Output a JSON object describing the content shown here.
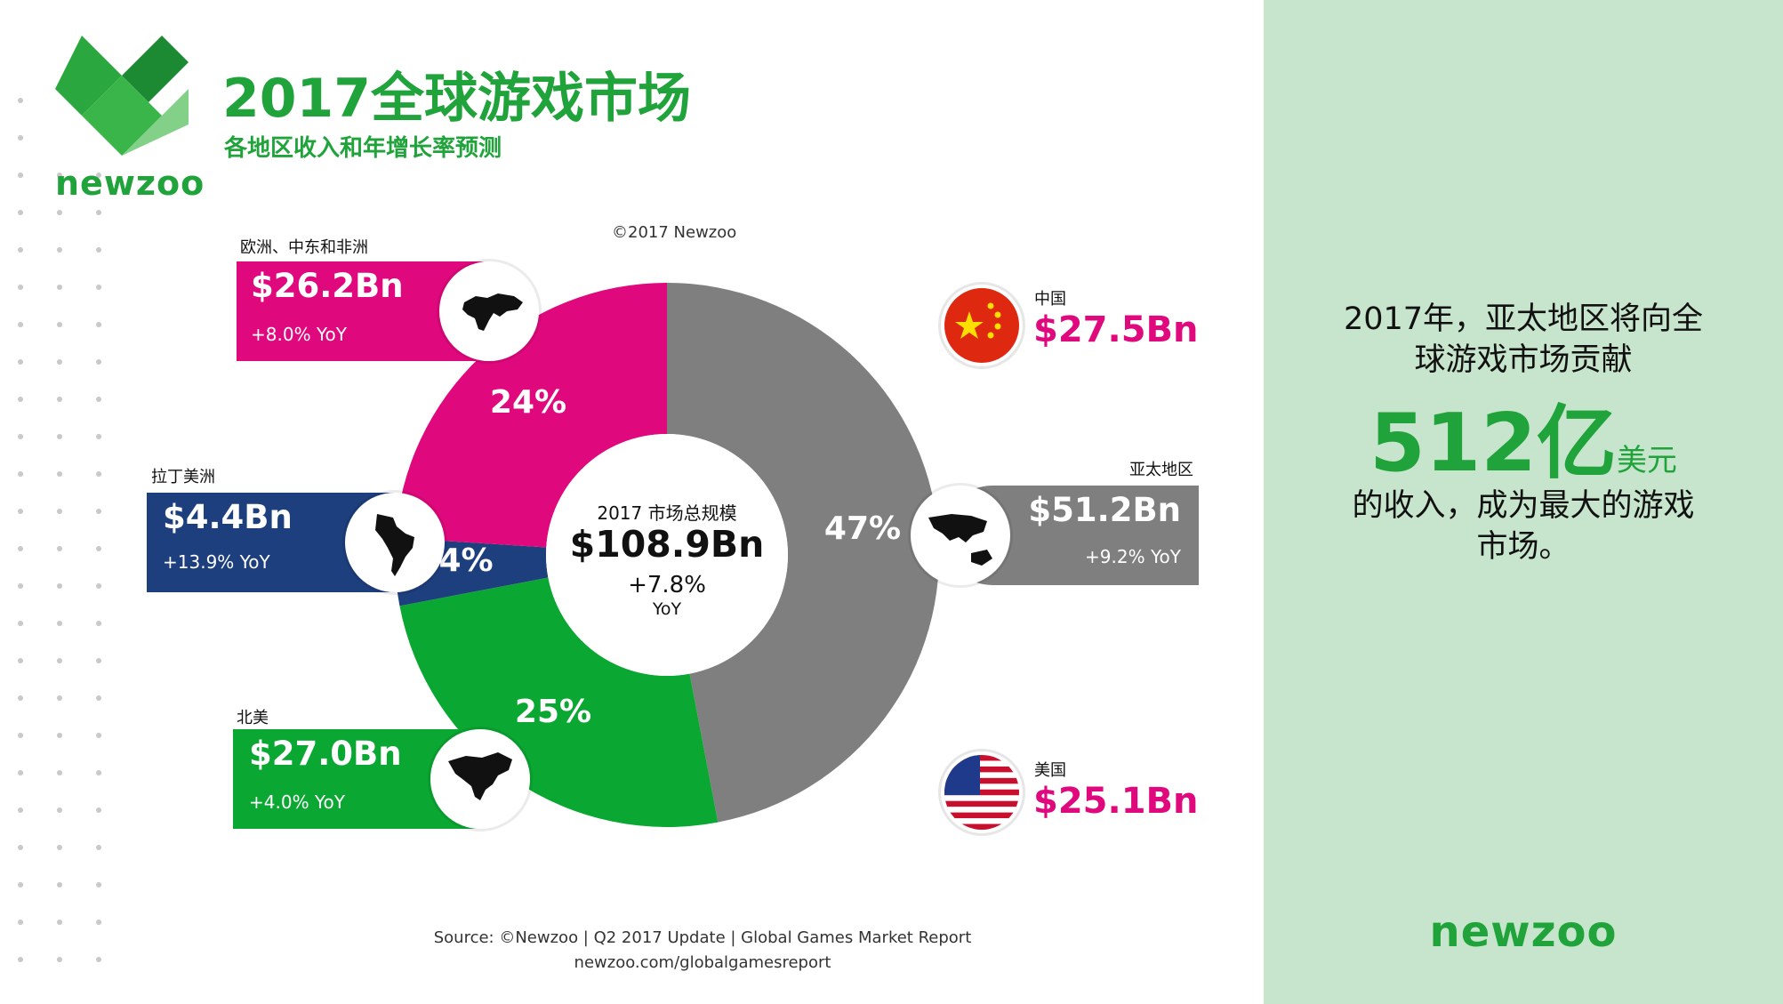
{
  "header": {
    "logo_text": "newzoo",
    "title": "2017全球游戏市场",
    "subtitle": "各地区收入和年增长率预测"
  },
  "copyright": "©2017 Newzoo",
  "center": {
    "label": "2017 市场总规模",
    "value": "$108.9Bn",
    "change": "+7.8%",
    "yoy": "YoY"
  },
  "regions": {
    "emea": {
      "name": "欧洲、中东和非洲",
      "value": "$26.2Bn",
      "yoy": "+8.0% YoY"
    },
    "latam": {
      "name": "拉丁美洲",
      "value": "$4.4Bn",
      "yoy": "+13.9% YoY"
    },
    "na": {
      "name": "北美",
      "value": "$27.0Bn",
      "yoy": "+4.0% YoY"
    },
    "apac": {
      "name": "亚太地区",
      "value": "$51.2Bn",
      "yoy": "+9.2% YoY"
    }
  },
  "countries": {
    "china": {
      "name": "中国",
      "value": "$27.5Bn"
    },
    "usa": {
      "name": "美国",
      "value": "$25.1Bn"
    }
  },
  "chart_data": {
    "type": "pie",
    "categories": [
      "亚太地区",
      "北美",
      "拉丁美洲",
      "欧洲、中东和非洲"
    ],
    "values": [
      47,
      25,
      4,
      24
    ],
    "labels": [
      "47%",
      "25%",
      "4%",
      "24%"
    ],
    "colors": [
      "#7f7f7f",
      "#0aa832",
      "#1e3f7d",
      "#e0087d"
    ]
  },
  "footer": {
    "source": "Source: ©Newzoo | Q2 2017 Update | Global Games Market Report",
    "url": "newzoo.com/globalgamesreport"
  },
  "right_panel": {
    "line1": "2017年，亚太地区将向全",
    "line2": "球游戏市场贡献",
    "big_number": "512亿",
    "big_unit": "美元",
    "line4": "的收入，成为最大的游戏",
    "line5": "市场。",
    "logo_text": "newzoo"
  }
}
